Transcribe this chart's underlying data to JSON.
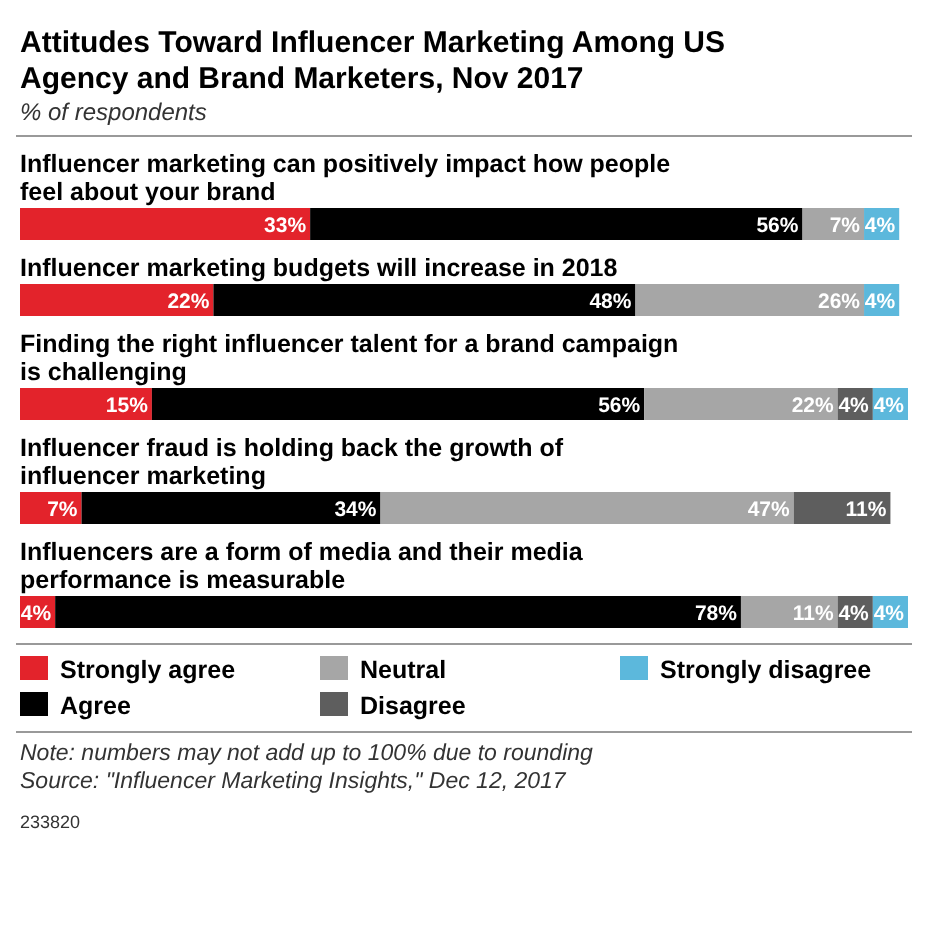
{
  "chart_data": {
    "type": "bar",
    "orientation": "horizontal",
    "stacked": true,
    "title": "Attitudes Toward Influencer Marketing Among US Agency and Brand Marketers, Nov 2017",
    "subtitle": "% of respondents",
    "categories": [
      "Influencer marketing can positively impact how people feel about your brand",
      "Influencer marketing budgets will increase in 2018",
      "Finding the right influencer talent for a brand campaign is challenging",
      "Influencer fraud is holding back the growth of influencer marketing",
      "Influencers are a form of media and their media performance is measurable"
    ],
    "series": [
      {
        "name": "Strongly agree",
        "color": "#e3232b",
        "values": [
          33,
          22,
          15,
          7,
          4
        ],
        "value_labels": [
          "33%",
          "22%",
          "15%",
          "7%",
          "4%"
        ]
      },
      {
        "name": "Agree",
        "color": "#000000",
        "values": [
          56,
          48,
          56,
          34,
          78
        ],
        "value_labels": [
          "56%",
          "48%",
          "56%",
          "34%",
          "78%"
        ]
      },
      {
        "name": "Neutral",
        "color": "#a6a6a6",
        "values": [
          7,
          26,
          22,
          47,
          11
        ],
        "value_labels": [
          "7%",
          "26%",
          "22%",
          "47%",
          "11%"
        ]
      },
      {
        "name": "Disagree",
        "color": "#5e5e5e",
        "values": [
          null,
          null,
          4,
          11,
          4
        ],
        "value_labels": [
          null,
          null,
          "4%",
          "11%",
          "4%"
        ]
      },
      {
        "name": "Strongly disagree",
        "color": "#5cb8dc",
        "values": [
          4,
          4,
          4,
          null,
          4
        ],
        "value_labels": [
          "4%",
          "4%",
          "4%",
          null,
          "4%"
        ]
      }
    ],
    "legend": "bottom",
    "annotations": [
      "Note: numbers may not add up to 100% due to rounding",
      "Source: \"Influencer Marketing Insights,\" Dec 12, 2017",
      "233820"
    ]
  }
}
